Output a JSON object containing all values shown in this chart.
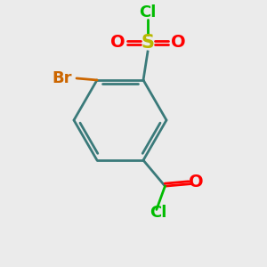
{
  "background_color": "#ebebeb",
  "ring_color": "#3a7a7a",
  "bond_width": 2.0,
  "atom_colors": {
    "S": "#b8b800",
    "O": "#ff0000",
    "Cl": "#00bb00",
    "Br": "#cc6600"
  },
  "font_sizes": {
    "S": 15,
    "O": 14,
    "Cl": 13,
    "Br": 13
  }
}
